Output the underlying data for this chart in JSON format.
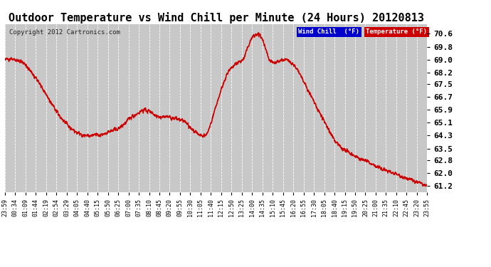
{
  "title": "Outdoor Temperature vs Wind Chill per Minute (24 Hours) 20120813",
  "copyright": "Copyright 2012 Cartronics.com",
  "yticks": [
    61.2,
    62.0,
    62.8,
    63.5,
    64.3,
    65.1,
    65.9,
    66.7,
    67.5,
    68.2,
    69.0,
    69.8,
    70.6
  ],
  "ymin": 60.8,
  "ymax": 71.2,
  "bg_color": "#ffffff",
  "plot_bg_color": "#c8c8c8",
  "grid_color": "#ffffff",
  "title_fontsize": 11,
  "legend_wind_chill_color": "#0000cc",
  "legend_temp_color": "#cc0000",
  "line_color": "#cc0000",
  "wind_chill_line_color": "#cc0000",
  "xtick_labels": [
    "23:59",
    "00:34",
    "01:09",
    "01:44",
    "02:19",
    "02:54",
    "03:29",
    "04:05",
    "04:40",
    "05:15",
    "05:50",
    "06:25",
    "07:00",
    "07:35",
    "08:10",
    "08:45",
    "09:20",
    "09:55",
    "10:30",
    "11:05",
    "11:40",
    "12:15",
    "12:50",
    "13:25",
    "14:00",
    "14:35",
    "15:10",
    "15:45",
    "16:20",
    "16:55",
    "17:30",
    "18:05",
    "18:40",
    "19:15",
    "19:50",
    "20:25",
    "21:00",
    "21:35",
    "22:10",
    "22:45",
    "23:20",
    "23:55"
  ],
  "temp_keypoints": [
    [
      0.0,
      69.0
    ],
    [
      0.005,
      69.05
    ],
    [
      0.01,
      69.1
    ],
    [
      0.015,
      69.1
    ],
    [
      0.02,
      69.05
    ],
    [
      0.025,
      69.0
    ],
    [
      0.03,
      69.0
    ],
    [
      0.04,
      68.9
    ],
    [
      0.055,
      68.5
    ],
    [
      0.07,
      68.0
    ],
    [
      0.09,
      67.2
    ],
    [
      0.11,
      66.3
    ],
    [
      0.13,
      65.5
    ],
    [
      0.15,
      64.9
    ],
    [
      0.17,
      64.5
    ],
    [
      0.185,
      64.35
    ],
    [
      0.2,
      64.3
    ],
    [
      0.21,
      64.35
    ],
    [
      0.215,
      64.4
    ],
    [
      0.22,
      64.35
    ],
    [
      0.225,
      64.3
    ],
    [
      0.23,
      64.4
    ],
    [
      0.24,
      64.5
    ],
    [
      0.25,
      64.6
    ],
    [
      0.26,
      64.7
    ],
    [
      0.27,
      64.75
    ],
    [
      0.28,
      65.0
    ],
    [
      0.3,
      65.5
    ],
    [
      0.315,
      65.7
    ],
    [
      0.325,
      65.9
    ],
    [
      0.335,
      65.9
    ],
    [
      0.345,
      65.8
    ],
    [
      0.35,
      65.7
    ],
    [
      0.355,
      65.6
    ],
    [
      0.365,
      65.5
    ],
    [
      0.375,
      65.5
    ],
    [
      0.385,
      65.5
    ],
    [
      0.395,
      65.4
    ],
    [
      0.405,
      65.4
    ],
    [
      0.415,
      65.3
    ],
    [
      0.425,
      65.2
    ],
    [
      0.435,
      64.9
    ],
    [
      0.445,
      64.7
    ],
    [
      0.455,
      64.45
    ],
    [
      0.465,
      64.35
    ],
    [
      0.47,
      64.3
    ],
    [
      0.475,
      64.35
    ],
    [
      0.48,
      64.5
    ],
    [
      0.49,
      65.3
    ],
    [
      0.5,
      66.2
    ],
    [
      0.51,
      67.0
    ],
    [
      0.52,
      67.8
    ],
    [
      0.53,
      68.3
    ],
    [
      0.54,
      68.6
    ],
    [
      0.548,
      68.8
    ],
    [
      0.555,
      68.9
    ],
    [
      0.56,
      68.95
    ],
    [
      0.565,
      69.05
    ],
    [
      0.57,
      69.4
    ],
    [
      0.575,
      69.8
    ],
    [
      0.58,
      70.1
    ],
    [
      0.585,
      70.4
    ],
    [
      0.59,
      70.5
    ],
    [
      0.595,
      70.55
    ],
    [
      0.6,
      70.6
    ],
    [
      0.605,
      70.5
    ],
    [
      0.61,
      70.2
    ],
    [
      0.615,
      69.8
    ],
    [
      0.62,
      69.4
    ],
    [
      0.625,
      69.0
    ],
    [
      0.63,
      68.9
    ],
    [
      0.635,
      68.8
    ],
    [
      0.64,
      68.85
    ],
    [
      0.645,
      68.9
    ],
    [
      0.65,
      68.95
    ],
    [
      0.655,
      69.0
    ],
    [
      0.66,
      69.0
    ],
    [
      0.665,
      69.0
    ],
    [
      0.67,
      68.95
    ],
    [
      0.675,
      68.9
    ],
    [
      0.68,
      68.8
    ],
    [
      0.69,
      68.5
    ],
    [
      0.7,
      68.0
    ],
    [
      0.71,
      67.5
    ],
    [
      0.72,
      67.0
    ],
    [
      0.73,
      66.5
    ],
    [
      0.74,
      66.0
    ],
    [
      0.75,
      65.5
    ],
    [
      0.76,
      65.0
    ],
    [
      0.77,
      64.5
    ],
    [
      0.78,
      64.0
    ],
    [
      0.8,
      63.5
    ],
    [
      0.82,
      63.2
    ],
    [
      0.84,
      62.9
    ],
    [
      0.86,
      62.7
    ],
    [
      0.88,
      62.4
    ],
    [
      0.9,
      62.2
    ],
    [
      0.92,
      62.0
    ],
    [
      0.94,
      61.8
    ],
    [
      0.96,
      61.6
    ],
    [
      0.98,
      61.4
    ],
    [
      1.0,
      61.2
    ]
  ]
}
